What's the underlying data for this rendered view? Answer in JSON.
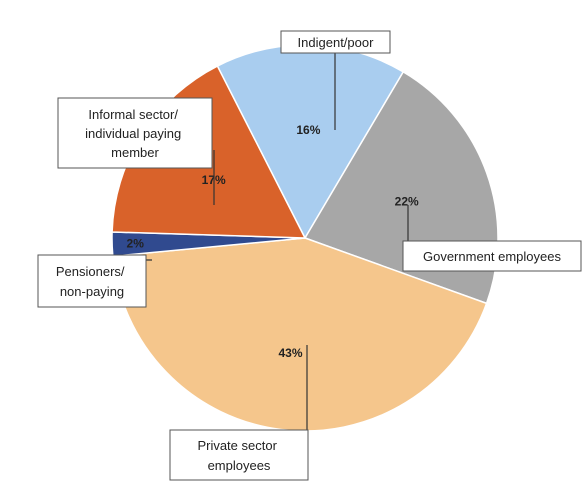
{
  "chart_data": {
    "type": "pie",
    "slices": [
      {
        "label": "Indigent/poor",
        "value": 16,
        "pct_label": "16%",
        "color": "#a9cdef"
      },
      {
        "label": "Government employees",
        "value": 22,
        "pct_label": "22%",
        "color": "#a7a7a7"
      },
      {
        "label": "Private sector employees",
        "value": 43,
        "pct_label": "43%",
        "color": "#f5c68c"
      },
      {
        "label": "Pensioners/ non-paying",
        "value": 2,
        "pct_label": "2%",
        "color": "#304a8f"
      },
      {
        "label": "Informal sector/ individual paying member",
        "value": 17,
        "pct_label": "17%",
        "color": "#d9622a"
      }
    ]
  },
  "labels": {
    "indigent": [
      "Indigent/poor"
    ],
    "government": [
      "Government employees"
    ],
    "private": [
      "Private sector",
      "employees"
    ],
    "pensioners": [
      "Pensioners/",
      "non-paying"
    ],
    "informal": [
      "Informal sector/",
      "individual paying",
      "member"
    ]
  }
}
